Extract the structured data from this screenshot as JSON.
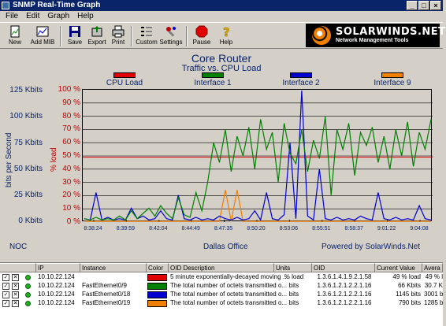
{
  "window": {
    "title": "SNMP Real-Time Graph",
    "minimize": "_",
    "maximize": "□",
    "close": "×"
  },
  "menu": [
    "File",
    "Edit",
    "Graph",
    "Help"
  ],
  "toolbar": [
    {
      "label": "New",
      "icon": "new-icon"
    },
    {
      "label": "Add MIB",
      "icon": "add-mib-icon"
    },
    {
      "label": "Save",
      "icon": "save-icon"
    },
    {
      "label": "Export",
      "icon": "export-icon"
    },
    {
      "label": "Print",
      "icon": "print-icon"
    },
    {
      "label": "Custom",
      "icon": "custom-icon"
    },
    {
      "label": "Settings",
      "icon": "settings-icon"
    },
    {
      "label": "Pause",
      "icon": "pause-icon"
    },
    {
      "label": "Help",
      "icon": "help-icon"
    }
  ],
  "logo": {
    "name": "SOLARWINDS.NET",
    "subtitle": "Network Management Tools"
  },
  "chart_data": {
    "type": "line",
    "title": "Core Router",
    "subtitle": "Traffic vs. CPU Load",
    "y_left_label": "bits per Second",
    "y_right_label": "% load",
    "y_left_ticks": [
      "125 Kbits",
      "100 Kbits",
      "75 Kbits",
      "50 Kbits",
      "25 Kbits",
      "0 Kbits"
    ],
    "y_right_ticks": [
      "100 %",
      "90 %",
      "80 %",
      "70 %",
      "60 %",
      "50 %",
      "40 %",
      "30 %",
      "20 %",
      "10 %",
      "0 %"
    ],
    "x_ticks": [
      "8:38:24",
      "8:39:59",
      "8:42:04",
      "8:44:49",
      "8:47:35",
      "8:50:20",
      "8:53:06",
      "8:55:51",
      "8:58:37",
      "9:01:22",
      "9:04:08"
    ],
    "ylim_left": [
      0,
      125
    ],
    "ylim_right": [
      0,
      100
    ],
    "threshold_right": 49,
    "grid": true,
    "legend_position": "top",
    "series": [
      {
        "name": "CPU Load",
        "color": "#e00000",
        "values": [
          49,
          49,
          49,
          49,
          49,
          49,
          49,
          49,
          49,
          49,
          49,
          49,
          49,
          49,
          49,
          49,
          49,
          49,
          49,
          49,
          49,
          49,
          49,
          49,
          49,
          49,
          49,
          49,
          49,
          49,
          49,
          49,
          49,
          49,
          49,
          49,
          49,
          49,
          49,
          49,
          49,
          49,
          49,
          49,
          49,
          49,
          49,
          49,
          49,
          49,
          49,
          49,
          49,
          49,
          49,
          49,
          49,
          49,
          49,
          49
        ]
      },
      {
        "name": "Interface 1",
        "color": "#008000",
        "values": [
          2,
          1,
          3,
          1,
          2,
          1,
          4,
          1,
          8,
          2,
          6,
          10,
          4,
          12,
          6,
          2,
          18,
          5,
          3,
          22,
          8,
          30,
          60,
          45,
          70,
          38,
          65,
          50,
          72,
          40,
          78,
          55,
          68,
          30,
          75,
          52,
          44,
          70,
          38,
          62,
          48,
          80,
          20,
          70,
          55,
          75,
          35,
          68,
          58,
          72,
          45,
          65,
          40,
          70,
          50,
          76,
          42,
          68,
          55,
          78
        ]
      },
      {
        "name": "Interface 2",
        "color": "#0000d0",
        "values": [
          2,
          1,
          22,
          1,
          3,
          1,
          2,
          1,
          10,
          2,
          4,
          1,
          2,
          8,
          2,
          1,
          20,
          2,
          1,
          3,
          1,
          2,
          1,
          4,
          2,
          1,
          3,
          1,
          2,
          8,
          1,
          22,
          2,
          1,
          5,
          60,
          2,
          100,
          4,
          1,
          40,
          2,
          1,
          3,
          1,
          2,
          1,
          4,
          2,
          1,
          22,
          2,
          1,
          3,
          1,
          2,
          1,
          12,
          2,
          1
        ]
      },
      {
        "name": "Interface 9",
        "color": "#f08000",
        "values": [
          0,
          0,
          0,
          0,
          0,
          0,
          0,
          0,
          0,
          0,
          0,
          0,
          0,
          0,
          0,
          0,
          0,
          0,
          0,
          0,
          0,
          0,
          0,
          0,
          24,
          0,
          24,
          0,
          0,
          0,
          0,
          0,
          0,
          0,
          0,
          0,
          0,
          0,
          0,
          0,
          0,
          0,
          0,
          0,
          0,
          0,
          0,
          0,
          0,
          0,
          0,
          0,
          0,
          0,
          0,
          0,
          0,
          0,
          0,
          0
        ]
      }
    ],
    "footer_left": "NOC",
    "footer_center": "Dallas Office",
    "footer_right": "Powered by SolarWinds.Net"
  },
  "table": {
    "headers": [
      "IP",
      "Instance",
      "Color",
      "OID Description",
      "Units",
      "OID",
      "Current Value",
      "Avera"
    ],
    "rows": [
      {
        "ip": "10.10.22.124",
        "instance": "",
        "color": "#e00000",
        "desc": "5 minute exponentially-decayed moving ...",
        "units": "% load",
        "oid": "1.3.6.1.4.1.9.2.1.58",
        "current": "49 % load",
        "avg": "49 % l"
      },
      {
        "ip": "10.10.22.124",
        "instance": "FastEthernet0/9",
        "color": "#008000",
        "desc": "The total number of octets transmitted o...",
        "units": "bits",
        "oid": "1.3.6.1.2.1.2.2.1.16",
        "current": "66 Kbits",
        "avg": "30.7 K"
      },
      {
        "ip": "10.10.22.124",
        "instance": "FastEthernet0/18",
        "color": "#0000d0",
        "desc": "The total number of octets transmitted o...",
        "units": "bits",
        "oid": "1.3.6.1.2.1.2.2.1.16",
        "current": "1145 bits",
        "avg": "3001 b"
      },
      {
        "ip": "10.10.22.124",
        "instance": "FastEthernet0/19",
        "color": "#f08000",
        "desc": "The total number of octets transmitted o...",
        "units": "bits",
        "oid": "1.3.6.1.2.1.2.2.1.16",
        "current": "790 bits",
        "avg": "1285 b"
      }
    ]
  }
}
